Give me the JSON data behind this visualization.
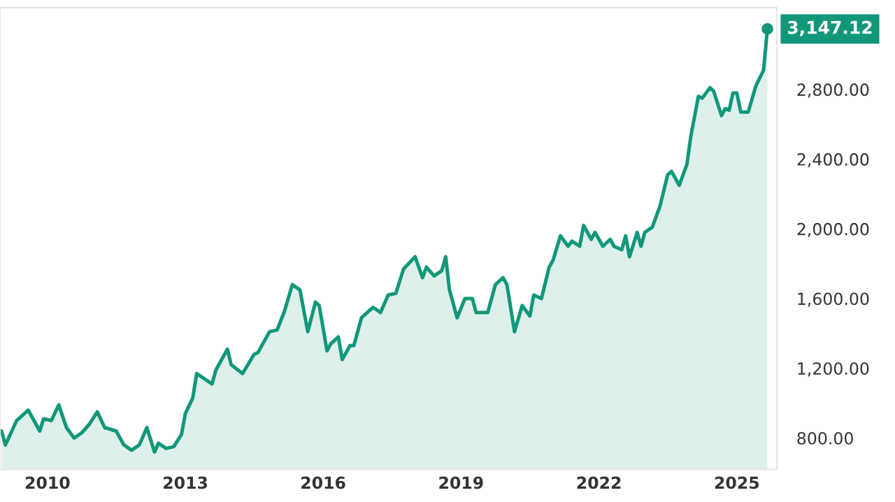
{
  "chart_data": {
    "type": "area",
    "color": "#12977a",
    "x": [
      "2009-01",
      "2009-02",
      "2009-05",
      "2009-08",
      "2009-11",
      "2009-12",
      "2010-02",
      "2010-04",
      "2010-06",
      "2010-08",
      "2010-10",
      "2010-12",
      "2011-02",
      "2011-04",
      "2011-07",
      "2011-09",
      "2011-11",
      "2012-01",
      "2012-03",
      "2012-05",
      "2012-06",
      "2012-08",
      "2012-10",
      "2012-12",
      "2013-01",
      "2013-03",
      "2013-04",
      "2013-08",
      "2013-09",
      "2013-12",
      "2014-01",
      "2014-04",
      "2014-07",
      "2014-08",
      "2014-11",
      "2015-01",
      "2015-03",
      "2015-05",
      "2015-07",
      "2015-09",
      "2015-11",
      "2015-12",
      "2016-02",
      "2016-03",
      "2016-05",
      "2016-06",
      "2016-08",
      "2016-09",
      "2016-11",
      "2017-02",
      "2017-04",
      "2017-06",
      "2017-08",
      "2017-10",
      "2018-01",
      "2018-03",
      "2018-04",
      "2018-06",
      "2018-08",
      "2018-09",
      "2018-10",
      "2018-12",
      "2019-02",
      "2019-04",
      "2019-05",
      "2019-08",
      "2019-10",
      "2019-12",
      "2020-01",
      "2020-03",
      "2020-05",
      "2020-07",
      "2020-08",
      "2020-10",
      "2020-12",
      "2021-01",
      "2021-03",
      "2021-05",
      "2021-06",
      "2021-08",
      "2021-09",
      "2021-11",
      "2021-12",
      "2022-02",
      "2022-04",
      "2022-05",
      "2022-07",
      "2022-08",
      "2022-09",
      "2022-11",
      "2022-12",
      "2023-01",
      "2023-03",
      "2023-05",
      "2023-07",
      "2023-08",
      "2023-10",
      "2023-12",
      "2024-01",
      "2024-03",
      "2024-04",
      "2024-06",
      "2024-07",
      "2024-09",
      "2024-10",
      "2024-11",
      "2024-12",
      "2025-01",
      "2025-02",
      "2025-04",
      "2025-06",
      "2025-08",
      "2025-09"
    ],
    "values": [
      840,
      760,
      900,
      960,
      840,
      910,
      900,
      990,
      860,
      800,
      830,
      880,
      950,
      860,
      840,
      760,
      730,
      760,
      860,
      720,
      770,
      740,
      750,
      820,
      940,
      1030,
      1170,
      1110,
      1190,
      1310,
      1220,
      1170,
      1280,
      1290,
      1410,
      1420,
      1530,
      1680,
      1650,
      1410,
      1580,
      1560,
      1300,
      1340,
      1380,
      1250,
      1330,
      1330,
      1490,
      1550,
      1520,
      1620,
      1630,
      1770,
      1840,
      1720,
      1780,
      1730,
      1760,
      1840,
      1650,
      1490,
      1600,
      1600,
      1520,
      1520,
      1680,
      1720,
      1680,
      1410,
      1560,
      1500,
      1620,
      1600,
      1780,
      1820,
      1960,
      1900,
      1930,
      1900,
      2020,
      1940,
      1980,
      1900,
      1940,
      1900,
      1880,
      1960,
      1840,
      1980,
      1900,
      1980,
      2010,
      2130,
      2310,
      2330,
      2250,
      2370,
      2530,
      2760,
      2750,
      2810,
      2790,
      2650,
      2690,
      2680,
      2780,
      2780,
      2670,
      2670,
      2820,
      2910,
      3147.12
    ],
    "value_labels": [
      null,
      null,
      null,
      null,
      null,
      null,
      null,
      null,
      null,
      null,
      null,
      null,
      null,
      null,
      null,
      null,
      null,
      null,
      null,
      null,
      null,
      null,
      null,
      null,
      null,
      null,
      null,
      null,
      null,
      null,
      null,
      null,
      null,
      null,
      null,
      null,
      null,
      null,
      null,
      null,
      null,
      null,
      null,
      null,
      null,
      null,
      null,
      null,
      null,
      null,
      null,
      null,
      null,
      null,
      null,
      null,
      null,
      null,
      null,
      null,
      null,
      null,
      null,
      null,
      null,
      null,
      null,
      null,
      null,
      null,
      null,
      null,
      null,
      null,
      null,
      null,
      null,
      null,
      null,
      null,
      null,
      null,
      null,
      null,
      null,
      null,
      null,
      null,
      null,
      null,
      null,
      null,
      null,
      null,
      null,
      null,
      null,
      null,
      null,
      null,
      null,
      null,
      null,
      null,
      null,
      null,
      null,
      null,
      null,
      null,
      null,
      null,
      "3,147.12"
    ],
    "xlim": [
      "2008-12-20",
      "2025-11-15"
    ],
    "xticks": [
      {
        "value": "2010-01-01",
        "label": "2010"
      },
      {
        "value": "2013-01-01",
        "label": "2013"
      },
      {
        "value": "2016-01-01",
        "label": "2016"
      },
      {
        "value": "2019-01-01",
        "label": "2019"
      },
      {
        "value": "2022-01-01",
        "label": "2022"
      },
      {
        "value": "2025-01-01",
        "label": "2025"
      }
    ],
    "ylim": [
      620,
      3270
    ],
    "yticks": [
      {
        "value": 800,
        "label": "800.00"
      },
      {
        "value": 1200,
        "label": "1,200.00"
      },
      {
        "value": 1600,
        "label": "1,600.00"
      },
      {
        "value": 2000,
        "label": "2,000.00"
      },
      {
        "value": 2400,
        "label": "2,400.00"
      },
      {
        "value": 2800,
        "label": "2,800.00"
      }
    ],
    "grid": false,
    "legend": false
  }
}
